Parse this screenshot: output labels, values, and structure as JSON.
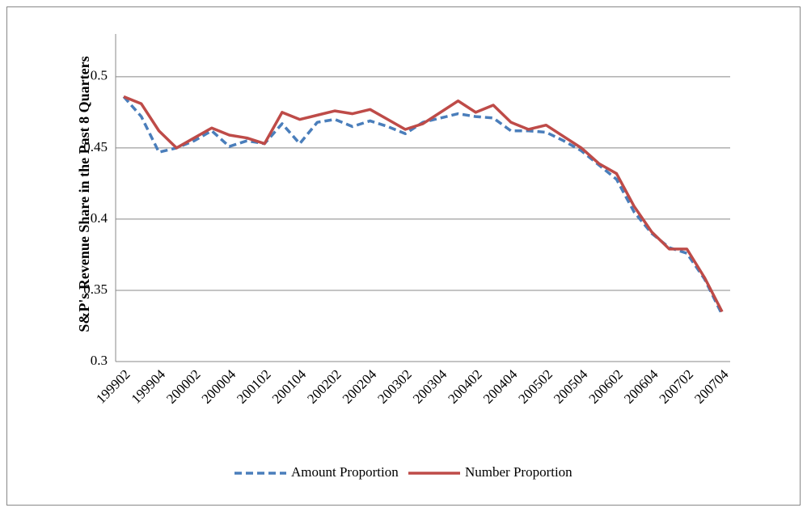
{
  "chart_data": {
    "type": "line",
    "y_label": "S&P's Revenue Share in the Past 8 Quarters",
    "categories": [
      "199902",
      null,
      "199904",
      null,
      "200002",
      null,
      "200004",
      null,
      "200102",
      null,
      "200104",
      null,
      "200202",
      null,
      "200204",
      null,
      "200302",
      null,
      "200304",
      null,
      "200402",
      null,
      "200404",
      null,
      "200502",
      null,
      "200504",
      null,
      "200602",
      null,
      "200604",
      null,
      "200702",
      null,
      "200704"
    ],
    "series": [
      {
        "name": "Amount Proportion",
        "color": "#4a7ebb",
        "dashed": true,
        "values": [
          0.486,
          0.472,
          0.447,
          0.45,
          0.455,
          0.462,
          0.451,
          0.455,
          0.453,
          0.467,
          0.453,
          0.468,
          0.47,
          0.465,
          0.469,
          0.465,
          0.46,
          0.468,
          0.471,
          0.474,
          0.472,
          0.471,
          0.462,
          0.462,
          0.461,
          0.455,
          0.448,
          0.438,
          0.428,
          0.405,
          0.39,
          0.38,
          0.376,
          0.358,
          0.333
        ]
      },
      {
        "name": "Number Proportion",
        "color": "#be4b48",
        "dashed": false,
        "values": [
          0.486,
          0.481,
          0.462,
          0.45,
          0.457,
          0.464,
          0.459,
          0.457,
          0.453,
          0.475,
          0.47,
          0.473,
          0.476,
          0.474,
          0.477,
          0.47,
          0.463,
          0.467,
          0.475,
          0.483,
          0.475,
          0.48,
          0.468,
          0.463,
          0.466,
          0.458,
          0.45,
          0.439,
          0.432,
          0.409,
          0.391,
          0.379,
          0.379,
          0.359,
          0.335
        ]
      }
    ],
    "ylim": [
      0.3,
      0.53
    ],
    "yticks": [
      0.3,
      0.35,
      0.4,
      0.45,
      0.5
    ],
    "grid": true,
    "legend": "bottom"
  }
}
